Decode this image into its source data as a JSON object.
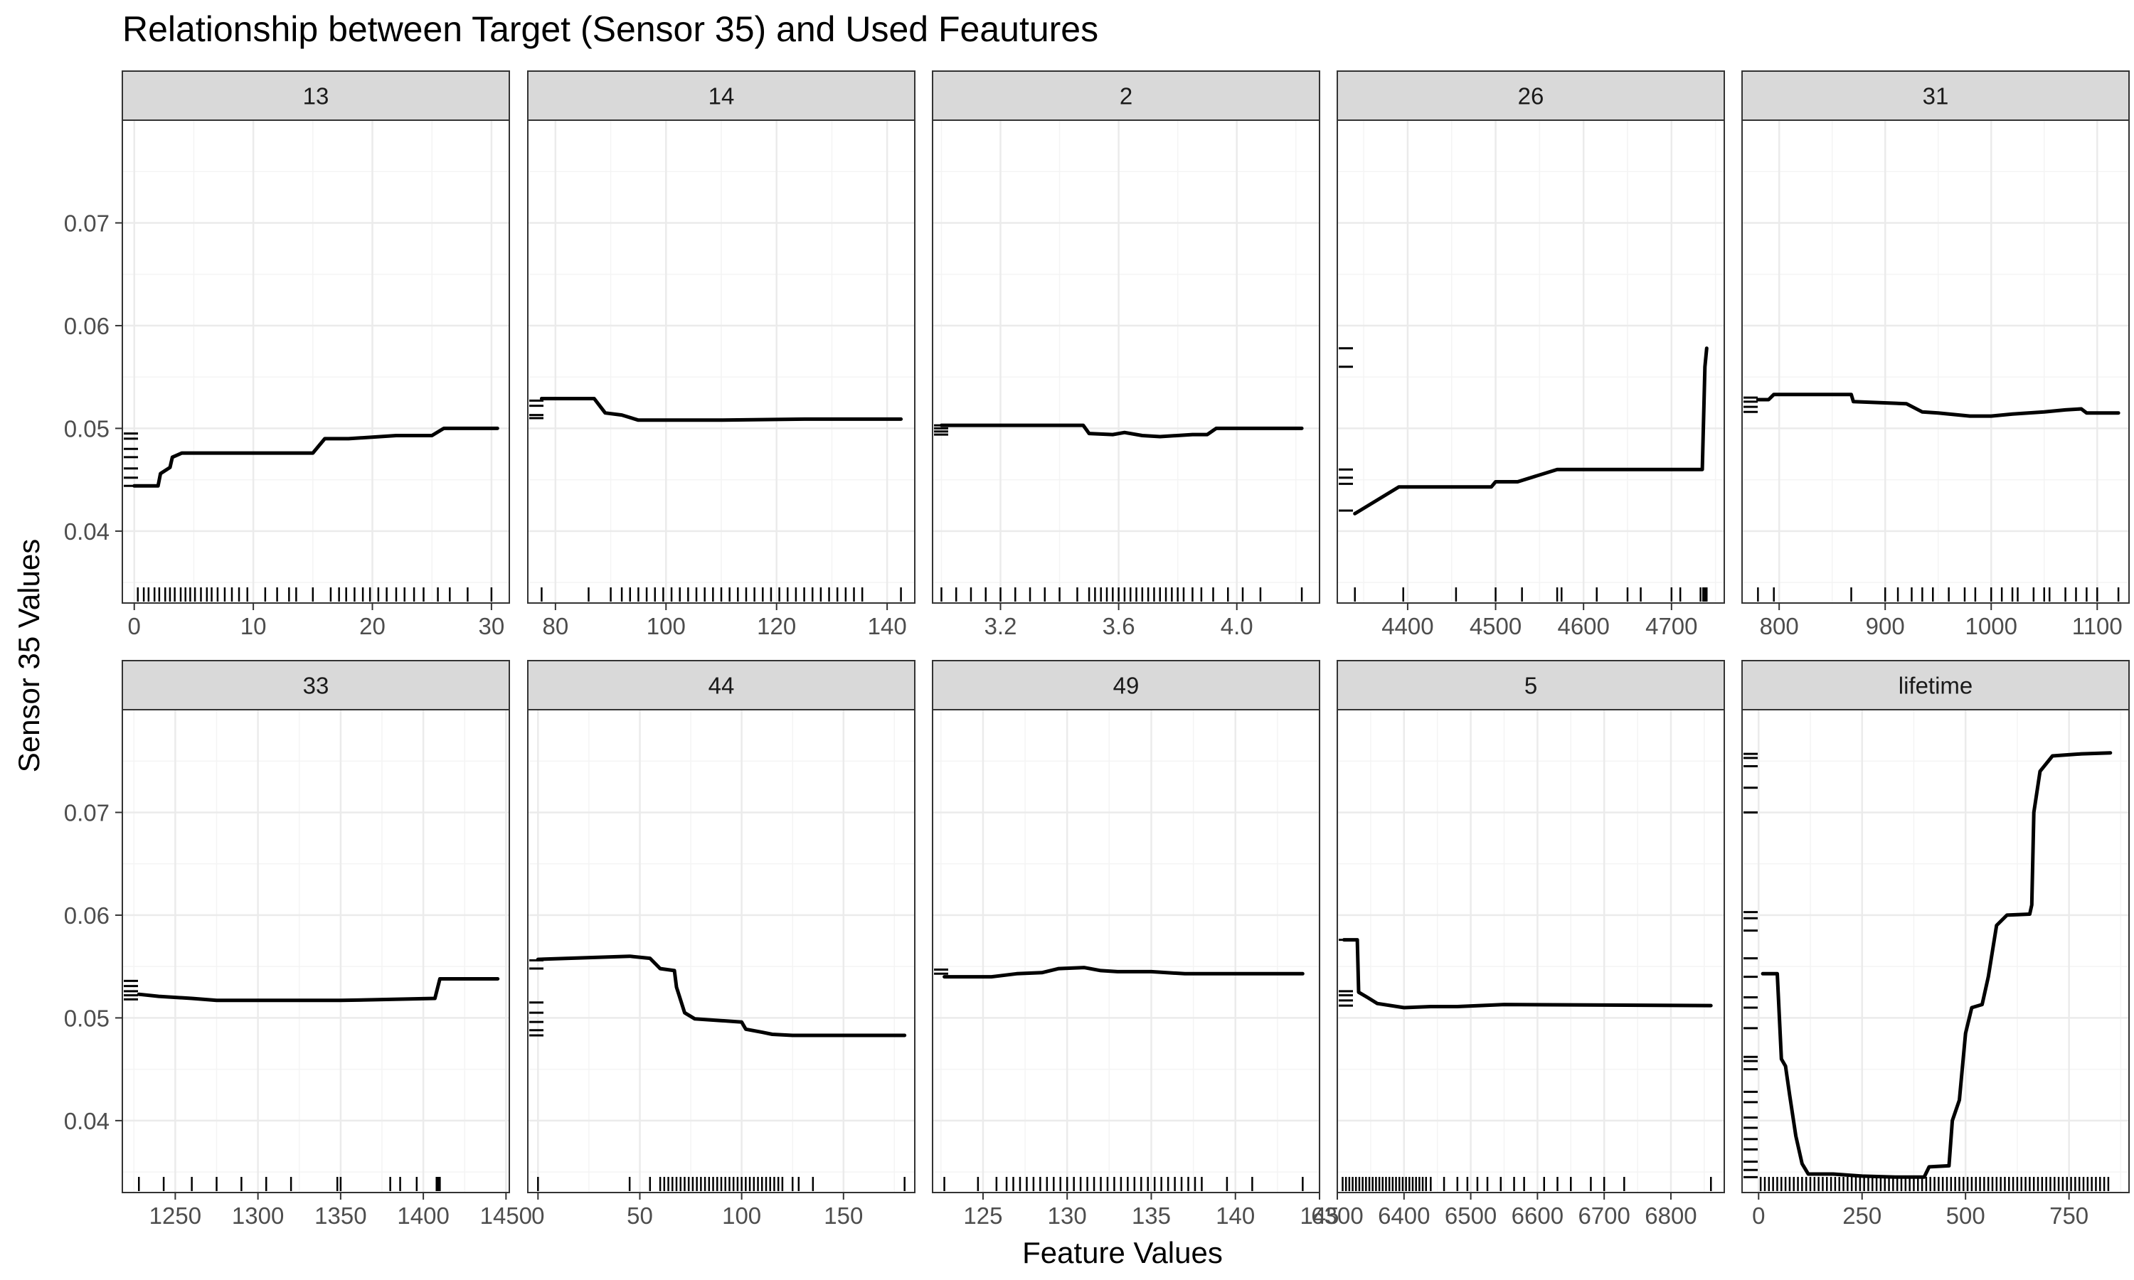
{
  "chart_data": {
    "type": "line",
    "title": "Relationship between Target (Sensor 35) and Used Feautures",
    "xlabel": "Feature Values",
    "ylabel": "Sensor 35 Values",
    "ylim": [
      0.033,
      0.08
    ],
    "y_ticks": [
      0.04,
      0.05,
      0.06,
      0.07
    ],
    "y_tick_labels": [
      "0.04",
      "0.05",
      "0.06",
      "0.07"
    ],
    "grid": true,
    "facets": [
      {
        "strip": "13",
        "xlim": [
          -1,
          31.5
        ],
        "x_ticks": [
          0,
          10,
          20,
          30
        ],
        "x_tick_labels": [
          "0",
          "10",
          "20",
          "30"
        ],
        "line": [
          [
            0,
            0.0444
          ],
          [
            2,
            0.0444
          ],
          [
            2.2,
            0.0456
          ],
          [
            3,
            0.0462
          ],
          [
            3.2,
            0.0472
          ],
          [
            4,
            0.0476
          ],
          [
            15,
            0.0476
          ],
          [
            16,
            0.049
          ],
          [
            18,
            0.049
          ],
          [
            22,
            0.0493
          ],
          [
            25,
            0.0493
          ],
          [
            26,
            0.05
          ],
          [
            30.5,
            0.05
          ]
        ],
        "rug_x": [
          0.3,
          0.8,
          1.2,
          1.7,
          2.1,
          2.6,
          3.0,
          3.4,
          3.9,
          4.3,
          4.7,
          5.1,
          5.6,
          6.1,
          6.5,
          7.0,
          7.6,
          8.2,
          8.8,
          9.5,
          11,
          12,
          13,
          13.6,
          15,
          16.5,
          17.2,
          17.8,
          18.5,
          19.2,
          19.8,
          20.5,
          21.2,
          22,
          22.7,
          23.5,
          24.3,
          25.5,
          26.5,
          28,
          30
        ],
        "rug_y": [
          0.0444,
          0.0452,
          0.0461,
          0.0472,
          0.048,
          0.049,
          0.0495
        ]
      },
      {
        "strip": "14",
        "xlim": [
          75,
          145
        ],
        "x_ticks": [
          80,
          100,
          120,
          140
        ],
        "x_tick_labels": [
          "80",
          "100",
          "120",
          "140"
        ],
        "line": [
          [
            77.5,
            0.0529
          ],
          [
            87,
            0.0529
          ],
          [
            89,
            0.0515
          ],
          [
            92,
            0.0513
          ],
          [
            95,
            0.0508
          ],
          [
            110,
            0.0508
          ],
          [
            125,
            0.0509
          ],
          [
            142.5,
            0.0509
          ]
        ],
        "rug_x": [
          77.5,
          86,
          90,
          92,
          93.5,
          95,
          96.5,
          98,
          99.5,
          101,
          102.5,
          104,
          105.5,
          107,
          108.5,
          110,
          111.5,
          113,
          114.5,
          116,
          117.5,
          119,
          120.5,
          122,
          123.5,
          125,
          126.5,
          128,
          129.5,
          131,
          132.5,
          134,
          135.5,
          142.5
        ],
        "rug_y": [
          0.051,
          0.0513,
          0.0522,
          0.0527
        ]
      },
      {
        "strip": "2",
        "xlim": [
          2.97,
          4.28
        ],
        "x_ticks": [
          3.2,
          3.6,
          4.0
        ],
        "x_tick_labels": [
          "3.2",
          "3.6",
          "4.0"
        ],
        "line": [
          [
            3.0,
            0.0503
          ],
          [
            3.48,
            0.0503
          ],
          [
            3.5,
            0.0495
          ],
          [
            3.58,
            0.0494
          ],
          [
            3.62,
            0.0496
          ],
          [
            3.68,
            0.0493
          ],
          [
            3.74,
            0.0492
          ],
          [
            3.85,
            0.0494
          ],
          [
            3.9,
            0.0494
          ],
          [
            3.93,
            0.05
          ],
          [
            4.22,
            0.05
          ]
        ],
        "rug_x": [
          3.0,
          3.05,
          3.1,
          3.15,
          3.2,
          3.25,
          3.3,
          3.35,
          3.4,
          3.46,
          3.5,
          3.52,
          3.54,
          3.56,
          3.58,
          3.6,
          3.62,
          3.64,
          3.66,
          3.68,
          3.7,
          3.72,
          3.74,
          3.76,
          3.78,
          3.8,
          3.82,
          3.85,
          3.88,
          3.92,
          3.97,
          4.02,
          4.08,
          4.22
        ],
        "rug_y": [
          0.0494,
          0.0497,
          0.05,
          0.0503
        ]
      },
      {
        "strip": "26",
        "xlim": [
          4320,
          4760
        ],
        "x_ticks": [
          4400,
          4500,
          4600,
          4700
        ],
        "x_tick_labels": [
          "4400",
          "4500",
          "4600",
          "4700"
        ],
        "line": [
          [
            4340,
            0.0417
          ],
          [
            4390,
            0.0443
          ],
          [
            4495,
            0.0443
          ],
          [
            4500,
            0.0448
          ],
          [
            4525,
            0.0448
          ],
          [
            4570,
            0.046
          ],
          [
            4735,
            0.046
          ],
          [
            4738,
            0.056
          ],
          [
            4740,
            0.0578
          ]
        ],
        "rug_x": [
          4340,
          4395,
          4455,
          4500,
          4530,
          4570,
          4575,
          4615,
          4650,
          4665,
          4700,
          4710,
          4733,
          4736,
          4738,
          4740
        ],
        "rug_y": [
          0.042,
          0.0446,
          0.0452,
          0.046,
          0.056,
          0.0578
        ]
      },
      {
        "strip": "31",
        "xlim": [
          765,
          1130
        ],
        "x_ticks": [
          800,
          900,
          1000,
          1100
        ],
        "x_tick_labels": [
          "800",
          "900",
          "1000",
          "1100"
        ],
        "line": [
          [
            780,
            0.0528
          ],
          [
            790,
            0.0528
          ],
          [
            795,
            0.0533
          ],
          [
            868,
            0.0533
          ],
          [
            870,
            0.0526
          ],
          [
            920,
            0.0524
          ],
          [
            935,
            0.0516
          ],
          [
            950,
            0.0515
          ],
          [
            980,
            0.0512
          ],
          [
            1000,
            0.0512
          ],
          [
            1020,
            0.0514
          ],
          [
            1050,
            0.0516
          ],
          [
            1070,
            0.0518
          ],
          [
            1085,
            0.0519
          ],
          [
            1090,
            0.0515
          ],
          [
            1120,
            0.0515
          ]
        ],
        "rug_x": [
          780,
          795,
          868,
          900,
          912,
          925,
          935,
          945,
          960,
          975,
          985,
          1000,
          1010,
          1020,
          1025,
          1040,
          1050,
          1055,
          1070,
          1080,
          1090,
          1100,
          1120
        ],
        "rug_y": [
          0.0516,
          0.0521,
          0.0526,
          0.053
        ]
      },
      {
        "strip": "33",
        "xlim": [
          1218,
          1452
        ],
        "x_ticks": [
          1250,
          1300,
          1350,
          1400,
          1450
        ],
        "x_tick_labels": [
          "1250",
          "1300",
          "1350",
          "1400",
          "1450"
        ],
        "line": [
          [
            1228,
            0.0523
          ],
          [
            1240,
            0.0521
          ],
          [
            1260,
            0.0519
          ],
          [
            1275,
            0.0517
          ],
          [
            1350,
            0.0517
          ],
          [
            1380,
            0.0518
          ],
          [
            1407,
            0.0519
          ],
          [
            1410,
            0.0538
          ],
          [
            1445,
            0.0538
          ]
        ],
        "rug_x": [
          1228,
          1243,
          1260,
          1275,
          1290,
          1305,
          1320,
          1348,
          1350,
          1380,
          1386,
          1396,
          1408,
          1409,
          1410
        ],
        "rug_y": [
          0.0518,
          0.0522,
          0.0526,
          0.0531,
          0.0536
        ]
      },
      {
        "strip": "44",
        "xlim": [
          -5,
          185
        ],
        "x_ticks": [
          0,
          50,
          100,
          150
        ],
        "x_tick_labels": [
          "0",
          "50",
          "100",
          "150"
        ],
        "line": [
          [
            0,
            0.0557
          ],
          [
            15,
            0.0558
          ],
          [
            45,
            0.056
          ],
          [
            55,
            0.0558
          ],
          [
            60,
            0.0548
          ],
          [
            67,
            0.0546
          ],
          [
            68,
            0.053
          ],
          [
            72,
            0.0505
          ],
          [
            77,
            0.0499
          ],
          [
            100,
            0.0496
          ],
          [
            102,
            0.0489
          ],
          [
            110,
            0.0486
          ],
          [
            115,
            0.0484
          ],
          [
            125,
            0.0483
          ],
          [
            180,
            0.0483
          ]
        ],
        "rug_x": [
          0,
          45,
          55,
          60,
          62,
          64,
          66,
          68,
          70,
          72,
          74,
          76,
          78,
          80,
          82,
          84,
          86,
          88,
          90,
          92,
          94,
          96,
          98,
          100,
          102,
          104,
          106,
          108,
          110,
          112,
          114,
          116,
          118,
          120,
          125,
          128,
          135,
          180
        ],
        "rug_y": [
          0.0483,
          0.0488,
          0.0496,
          0.0505,
          0.0515,
          0.0548,
          0.0556
        ]
      },
      {
        "strip": "49",
        "xlim": [
          122,
          145
        ],
        "x_ticks": [
          125,
          130,
          135,
          140,
          145
        ],
        "x_tick_labels": [
          "125",
          "130",
          "135",
          "140",
          "145"
        ],
        "line": [
          [
            122.7,
            0.054
          ],
          [
            125.5,
            0.054
          ],
          [
            127,
            0.0543
          ],
          [
            128.5,
            0.0544
          ],
          [
            129.5,
            0.0548
          ],
          [
            131,
            0.0549
          ],
          [
            132,
            0.0546
          ],
          [
            133,
            0.0545
          ],
          [
            135,
            0.0545
          ],
          [
            137,
            0.0543
          ],
          [
            144,
            0.0543
          ]
        ],
        "rug_x": [
          122.7,
          124.7,
          125.8,
          126.4,
          126.8,
          127.2,
          127.6,
          128.0,
          128.4,
          128.8,
          129.2,
          129.6,
          130.0,
          130.4,
          130.8,
          131.2,
          131.6,
          132.0,
          132.4,
          132.8,
          133.2,
          133.6,
          134.0,
          134.4,
          134.8,
          135.2,
          135.6,
          136.0,
          136.4,
          136.8,
          137.2,
          137.6,
          138.0,
          139.5,
          141,
          144
        ],
        "rug_y": [
          0.0543,
          0.0547
        ]
      },
      {
        "strip": "5",
        "xlim": [
          6300,
          6880
        ],
        "x_ticks": [
          6300,
          6400,
          6500,
          6600,
          6700,
          6800
        ],
        "x_tick_labels": [
          "6300",
          "6400",
          "6500",
          "6600",
          "6700",
          "6800"
        ],
        "line": [
          [
            6310,
            0.0576
          ],
          [
            6330,
            0.0576
          ],
          [
            6332,
            0.0525
          ],
          [
            6345,
            0.052
          ],
          [
            6360,
            0.0514
          ],
          [
            6400,
            0.051
          ],
          [
            6440,
            0.0511
          ],
          [
            6480,
            0.0511
          ],
          [
            6550,
            0.0513
          ],
          [
            6860,
            0.0512
          ]
        ],
        "rug_x": [
          6308,
          6313,
          6318,
          6323,
          6328,
          6333,
          6338,
          6343,
          6348,
          6353,
          6358,
          6363,
          6368,
          6373,
          6378,
          6383,
          6388,
          6393,
          6398,
          6403,
          6408,
          6413,
          6418,
          6423,
          6428,
          6433,
          6440,
          6460,
          6480,
          6495,
          6510,
          6525,
          6545,
          6565,
          6580,
          6610,
          6630,
          6650,
          6680,
          6700,
          6730,
          6860
        ],
        "rug_y": [
          0.0512,
          0.0517,
          0.0522,
          0.0526,
          0.0576
        ]
      },
      {
        "strip": "lifetime",
        "xlim": [
          -40,
          895
        ],
        "x_ticks": [
          0,
          250,
          500,
          750
        ],
        "x_tick_labels": [
          "0",
          "250",
          "500",
          "750"
        ],
        "line": [
          [
            10,
            0.0543
          ],
          [
            45,
            0.0543
          ],
          [
            55,
            0.046
          ],
          [
            65,
            0.0453
          ],
          [
            75,
            0.0425
          ],
          [
            90,
            0.0385
          ],
          [
            105,
            0.0358
          ],
          [
            120,
            0.0348
          ],
          [
            180,
            0.0348
          ],
          [
            250,
            0.0346
          ],
          [
            330,
            0.0345
          ],
          [
            400,
            0.0345
          ],
          [
            412,
            0.0355
          ],
          [
            460,
            0.0356
          ],
          [
            468,
            0.04
          ],
          [
            485,
            0.042
          ],
          [
            500,
            0.0485
          ],
          [
            515,
            0.051
          ],
          [
            540,
            0.0513
          ],
          [
            555,
            0.054
          ],
          [
            575,
            0.059
          ],
          [
            600,
            0.06
          ],
          [
            655,
            0.0601
          ],
          [
            660,
            0.061
          ],
          [
            665,
            0.07
          ],
          [
            680,
            0.074
          ],
          [
            710,
            0.0755
          ],
          [
            780,
            0.0757
          ],
          [
            850,
            0.0758
          ]
        ],
        "rug_x": [
          5,
          15,
          25,
          35,
          45,
          55,
          65,
          75,
          85,
          95,
          105,
          115,
          125,
          135,
          145,
          155,
          165,
          175,
          185,
          195,
          205,
          215,
          225,
          235,
          245,
          255,
          265,
          275,
          285,
          295,
          305,
          315,
          325,
          335,
          345,
          355,
          365,
          375,
          385,
          395,
          405,
          415,
          425,
          435,
          445,
          455,
          465,
          475,
          485,
          495,
          505,
          515,
          525,
          535,
          545,
          555,
          565,
          575,
          585,
          595,
          605,
          615,
          625,
          635,
          645,
          655,
          665,
          675,
          685,
          695,
          705,
          715,
          725,
          735,
          745,
          755,
          765,
          775,
          785,
          795,
          805,
          815,
          825,
          835,
          845
        ],
        "rug_y": [
          0.0345,
          0.0352,
          0.036,
          0.0372,
          0.0382,
          0.0393,
          0.0403,
          0.0418,
          0.0428,
          0.045,
          0.0458,
          0.0462,
          0.049,
          0.051,
          0.052,
          0.054,
          0.0558,
          0.0585,
          0.0597,
          0.0603,
          0.07,
          0.0724,
          0.0745,
          0.0753,
          0.0757
        ]
      }
    ]
  },
  "style": {
    "line_color": "#000000",
    "strip_fill": "#d9d9d9",
    "grid_major": "#ebebeb",
    "grid_minor": "#f4f4f4",
    "panel_border": "#333333",
    "text_color": "#000000",
    "tick_label_color": "#4d4d4d"
  }
}
